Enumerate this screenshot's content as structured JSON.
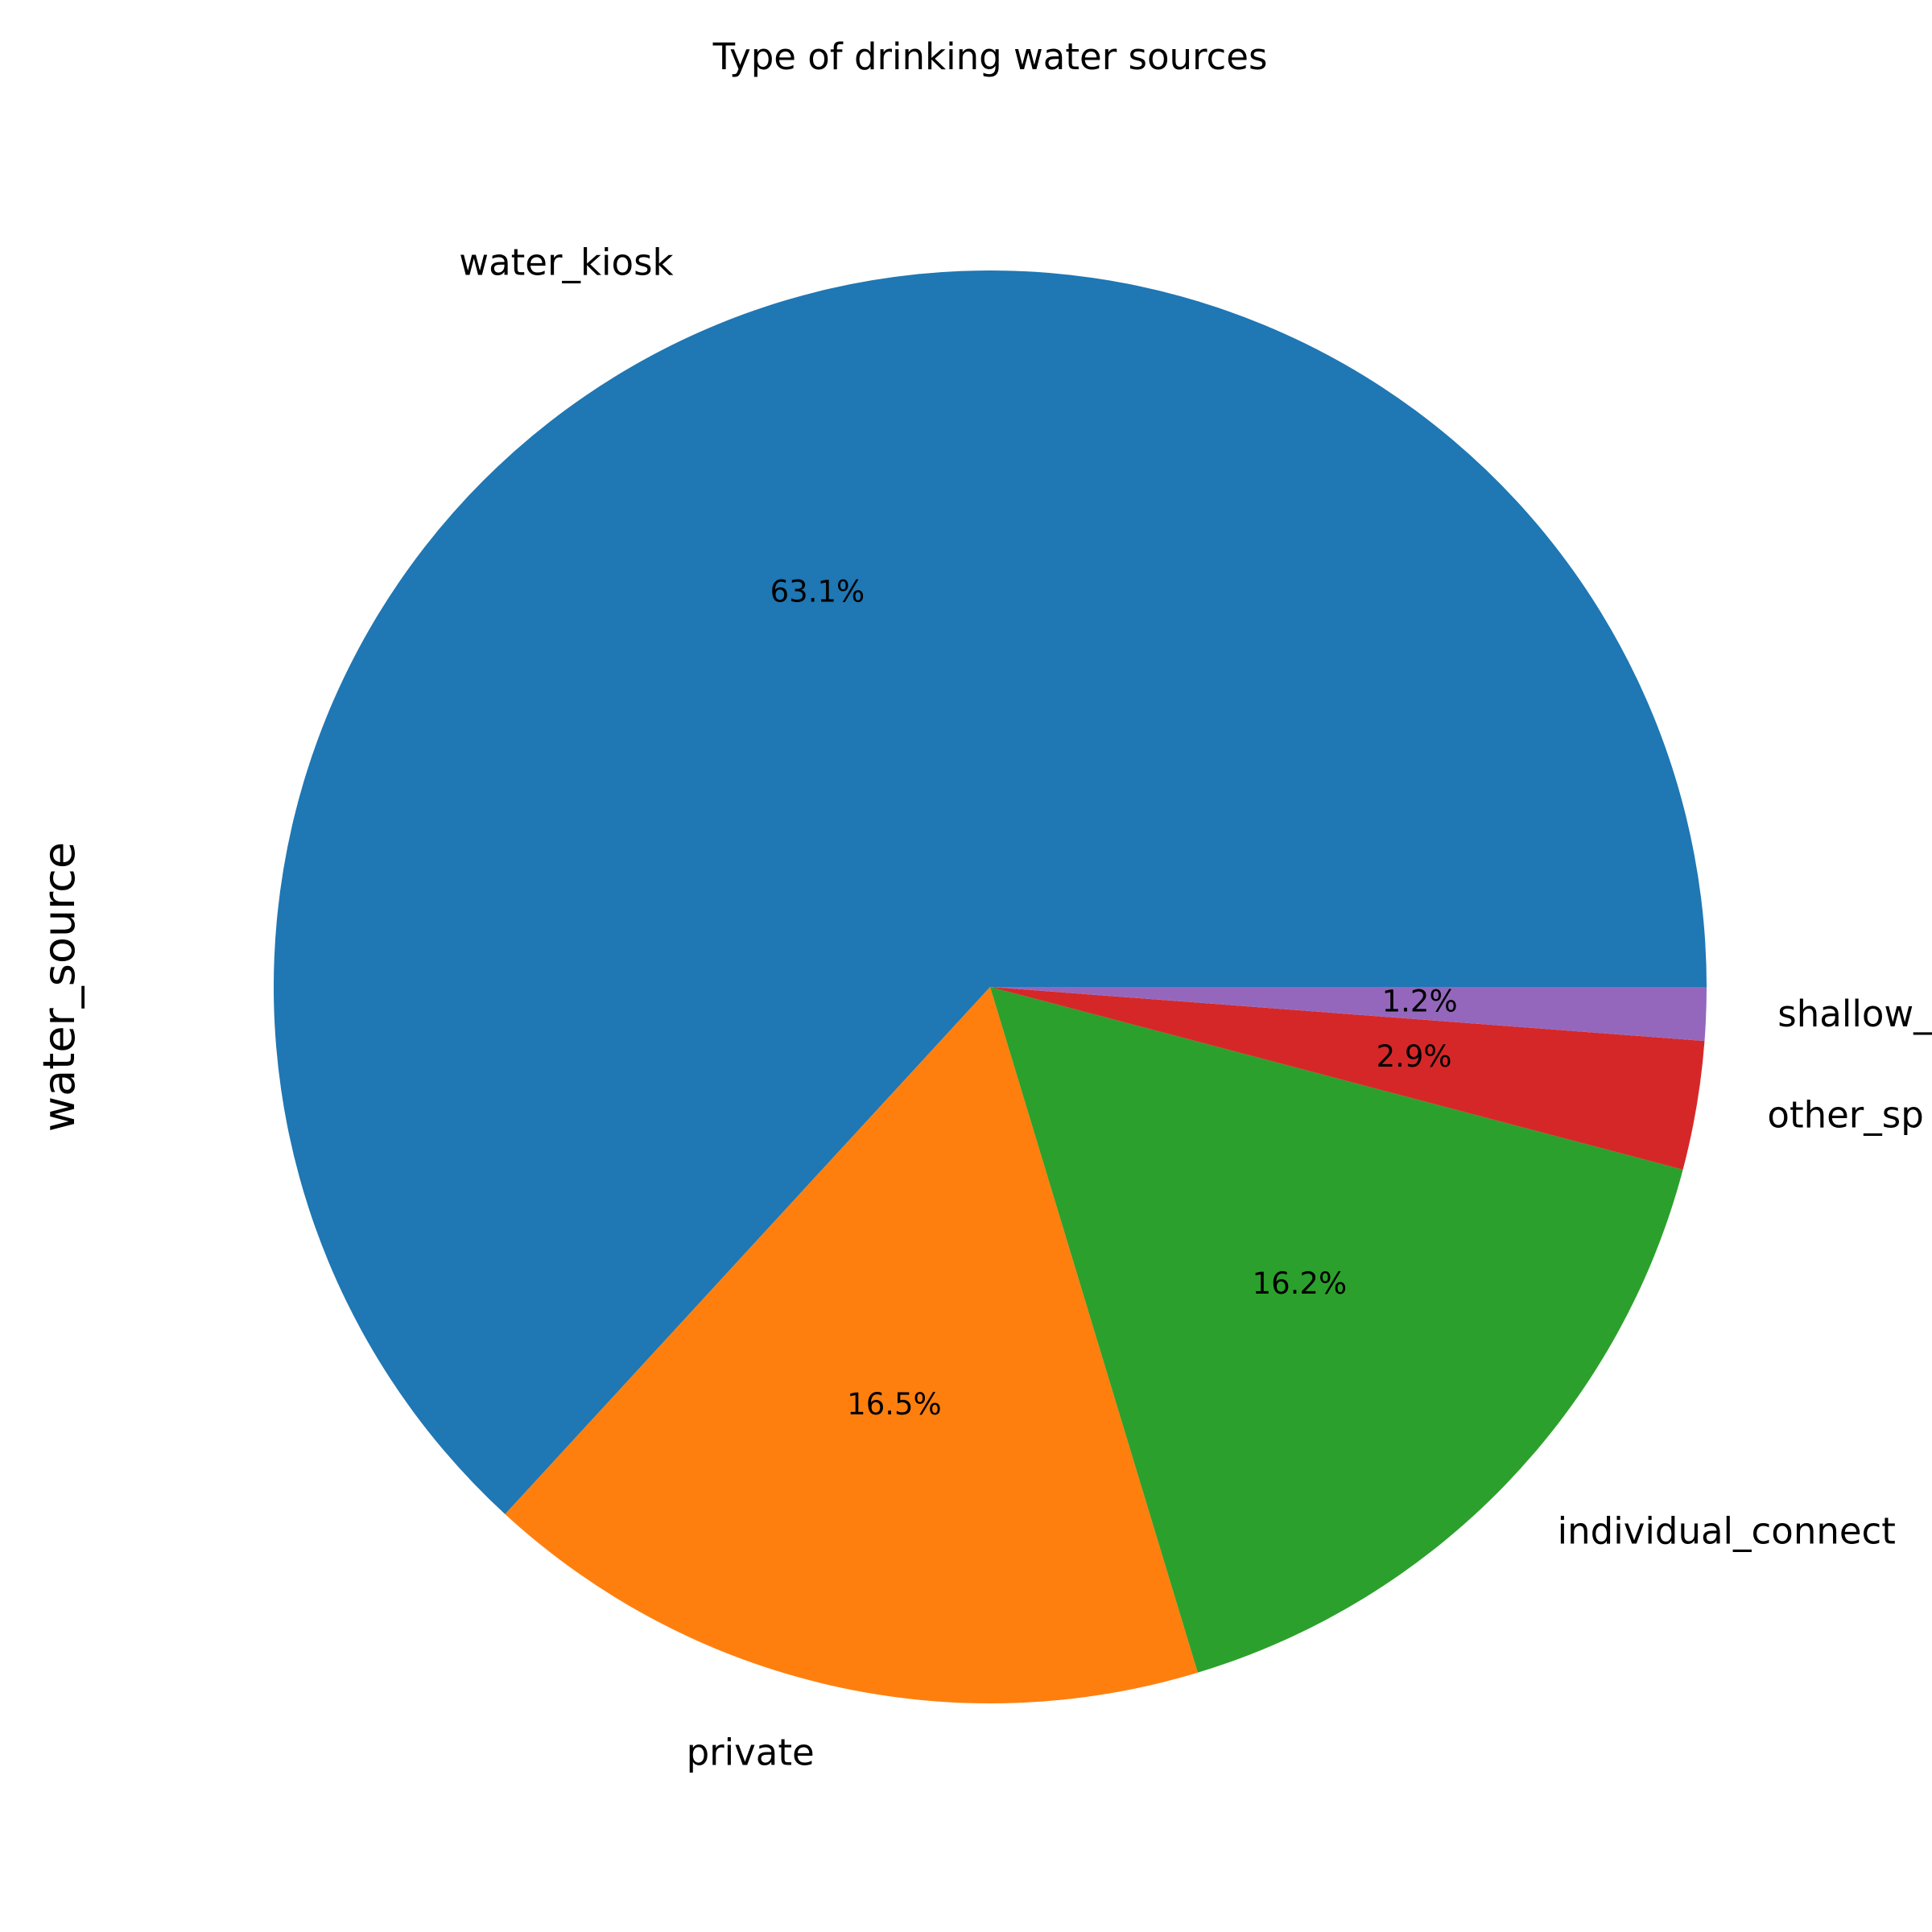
{
  "chart_data": {
    "type": "pie",
    "title": "Type of drinking water sources",
    "ylabel": "water_source",
    "slices": [
      {
        "label": "water_kiosk",
        "value": 63.1,
        "pct_label": "63.1%",
        "color": "#1f77b4"
      },
      {
        "label": "private",
        "value": 16.5,
        "pct_label": "16.5%",
        "color": "#ff7f0e"
      },
      {
        "label": "individual_connect",
        "value": 16.2,
        "pct_label": "16.2%",
        "color": "#2ca02c"
      },
      {
        "label": "other_sp",
        "value": 2.9,
        "pct_label": "2.9%",
        "color": "#d62728"
      },
      {
        "label": "shallow_",
        "value": 1.2,
        "pct_label": "1.2%",
        "color": "#9467bd"
      }
    ],
    "start_angle_deg": 0,
    "direction": "counterclockwise"
  }
}
